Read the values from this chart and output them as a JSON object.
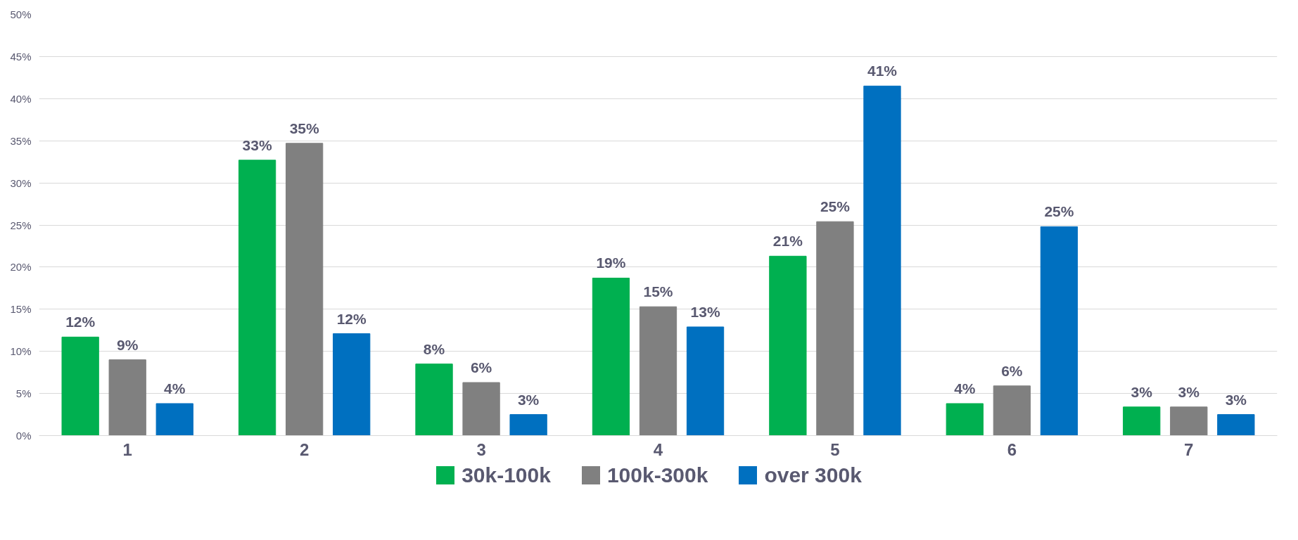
{
  "chart_data": {
    "type": "bar",
    "categories": [
      "1",
      "2",
      "3",
      "4",
      "5",
      "6",
      "7"
    ],
    "series": [
      {
        "name": "30k-100k",
        "color": "#00b050",
        "values": [
          11.7,
          32.7,
          8.5,
          18.7,
          21.3,
          3.8,
          3.4
        ],
        "value_labels": [
          "12%",
          "33%",
          "8%",
          "19%",
          "21%",
          "4%",
          "3%"
        ]
      },
      {
        "name": "100k-300k",
        "color": "#808080",
        "values": [
          9.0,
          34.7,
          6.3,
          15.3,
          25.4,
          5.9,
          3.4
        ],
        "value_labels": [
          "9%",
          "35%",
          "6%",
          "15%",
          "25%",
          "6%",
          "3%"
        ]
      },
      {
        "name": "over 300k",
        "color": "#0070c0",
        "values": [
          3.8,
          12.1,
          2.5,
          12.9,
          41.5,
          24.8,
          2.5
        ],
        "value_labels": [
          "4%",
          "12%",
          "3%",
          "13%",
          "41%",
          "25%",
          "3%"
        ]
      }
    ],
    "ylim": [
      0,
      50
    ],
    "yticks": [
      {
        "value": 0,
        "label": "0%"
      },
      {
        "value": 5,
        "label": "5%"
      },
      {
        "value": 10,
        "label": "10%"
      },
      {
        "value": 15,
        "label": "15%"
      },
      {
        "value": 20,
        "label": "20%"
      },
      {
        "value": 25,
        "label": "25%"
      },
      {
        "value": 30,
        "label": "30%"
      },
      {
        "value": 35,
        "label": "35%"
      },
      {
        "value": 40,
        "label": "40%"
      },
      {
        "value": 45,
        "label": "45%"
      },
      {
        "value": 50,
        "label": "50%"
      }
    ],
    "grid": "y",
    "legend": "bottom"
  }
}
